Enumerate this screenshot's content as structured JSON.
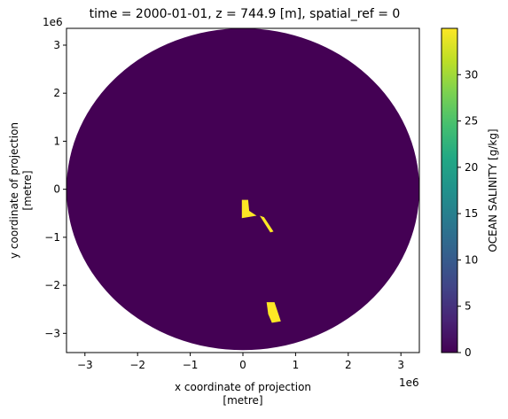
{
  "chart_data": {
    "type": "heatmap",
    "title": "time = 2000-01-01, z = 744.9 [m], spatial_ref = 0",
    "xlabel_line1": "x coordinate of projection",
    "xlabel_line2": "[metre]",
    "ylabel_line1": "y coordinate of projection",
    "ylabel_line2": "[metre]",
    "x_offset_label": "1e6",
    "y_offset_label": "1e6",
    "xlim": [
      -3.35,
      3.35
    ],
    "ylim": [
      -3.4,
      3.35
    ],
    "xticks": [
      -3,
      -2,
      -1,
      0,
      1,
      2,
      3
    ],
    "yticks": [
      -3,
      -2,
      -1,
      0,
      1,
      2,
      3
    ],
    "xtick_labels": [
      "−3",
      "−2",
      "−1",
      "0",
      "1",
      "2",
      "3"
    ],
    "ytick_labels": [
      "−3",
      "−2",
      "−1",
      "0",
      "1",
      "2",
      "3"
    ],
    "data_extent": {
      "disk_radius": 3.35,
      "disk_fill_value": 0
    },
    "high_value_regions": [
      {
        "value": 35,
        "polygon": [
          [
            -0.02,
            -0.22
          ],
          [
            0.1,
            -0.22
          ],
          [
            0.12,
            -0.45
          ],
          [
            0.26,
            -0.55
          ],
          [
            -0.02,
            -0.6
          ]
        ]
      },
      {
        "value": 35,
        "polygon": [
          [
            0.32,
            -0.55
          ],
          [
            0.4,
            -0.58
          ],
          [
            0.58,
            -0.88
          ],
          [
            0.52,
            -0.9
          ]
        ]
      },
      {
        "value": 35,
        "polygon": [
          [
            0.45,
            -2.35
          ],
          [
            0.6,
            -2.35
          ],
          [
            0.72,
            -2.75
          ],
          [
            0.55,
            -2.78
          ],
          [
            0.48,
            -2.6
          ]
        ]
      }
    ],
    "colorbar": {
      "label": "OCEAN SALINITY [g/kg]",
      "colormap": "viridis",
      "range": [
        0,
        35
      ],
      "ticks": [
        0,
        5,
        10,
        15,
        20,
        25,
        30
      ],
      "tick_labels": [
        "0",
        "5",
        "10",
        "15",
        "20",
        "25",
        "30"
      ]
    },
    "colors": {
      "low": "#440154",
      "high": "#fde725"
    }
  }
}
